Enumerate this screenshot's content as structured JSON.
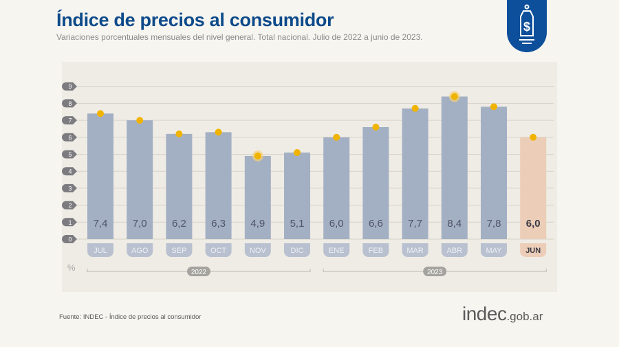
{
  "header": {
    "title": "Índice de precios al consumidor",
    "subtitle": "Variaciones porcentuales mensuales del nivel general. Total nacional. Julio de 2022 a junio de 2023."
  },
  "footer": {
    "source": "Fuente: INDEC - Índice de precios al consumidor",
    "brand_main": "indec",
    "brand_suffix": ".gob.ar"
  },
  "chart_data": {
    "type": "bar",
    "title": "Índice de precios al consumidor",
    "ylabel": "%",
    "ylim": [
      0,
      9
    ],
    "yticks": [
      "0",
      "1",
      "2",
      "3",
      "4",
      "5",
      "6",
      "7",
      "8",
      "9"
    ],
    "categories": [
      "JUL",
      "AGO",
      "SEP",
      "OCT",
      "NOV",
      "DIC",
      "ENE",
      "FEB",
      "MAR",
      "ABR",
      "MAY",
      "JUN"
    ],
    "values": [
      7.4,
      7.0,
      6.2,
      6.3,
      4.9,
      5.1,
      6.0,
      6.6,
      7.7,
      8.4,
      7.8,
      6.0
    ],
    "labels": [
      "7,4",
      "7,0",
      "6,2",
      "6,3",
      "4,9",
      "5,1",
      "6,0",
      "6,6",
      "7,7",
      "8,4",
      "7,8",
      "6,0"
    ],
    "highlighted": [
      "NOV",
      "ABR"
    ],
    "years": [
      {
        "label": "2022",
        "from": 0,
        "to": 5
      },
      {
        "label": "2023",
        "from": 6,
        "to": 11
      }
    ],
    "colors": {
      "bar": "#a3afc3",
      "bar_current": "#eccdb8",
      "dot": "#f0b400",
      "tick": "#7b7b80"
    },
    "grid": true
  }
}
